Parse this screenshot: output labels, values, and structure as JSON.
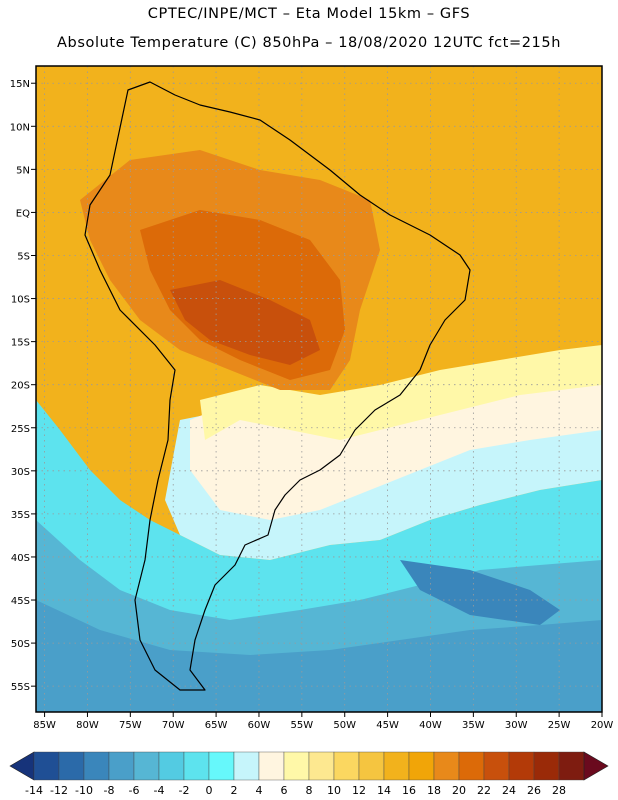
{
  "header": {
    "line1": "CPTEC/INPE/MCT –  Eta Model 15km – GFS",
    "line2": "Absolute Temperature (C) 850hPa – 18/08/2020 12UTC fct=215h"
  },
  "map": {
    "lat_range": [
      -58,
      17
    ],
    "lon_range": [
      -86,
      -20
    ],
    "lat_labels": [
      "15N",
      "10N",
      "5N",
      "EQ",
      "5S",
      "10S",
      "15S",
      "20S",
      "25S",
      "30S",
      "35S",
      "40S",
      "45S",
      "50S",
      "55S"
    ],
    "lat_values": [
      15,
      10,
      5,
      0,
      -5,
      -10,
      -15,
      -20,
      -25,
      -30,
      -35,
      -40,
      -45,
      -50,
      -55
    ],
    "lon_labels": [
      "85W",
      "80W",
      "75W",
      "70W",
      "65W",
      "60W",
      "55W",
      "50W",
      "45W",
      "40W",
      "35W",
      "30W",
      "25W",
      "20W"
    ],
    "lon_values": [
      -85,
      -80,
      -75,
      -70,
      -65,
      -60,
      -55,
      -50,
      -45,
      -40,
      -35,
      -30,
      -25,
      -20
    ],
    "grid": "dotted"
  },
  "colorbar": {
    "units": "C",
    "labels": [
      "-14",
      "-12",
      "-10",
      "-8",
      "-6",
      "-4",
      "-2",
      "0",
      "2",
      "4",
      "6",
      "8",
      "10",
      "12",
      "14",
      "16",
      "18",
      "20",
      "22",
      "24",
      "26",
      "28"
    ],
    "colors": [
      "#16337a",
      "#1f4f95",
      "#2b6aa9",
      "#3a86bb",
      "#4a9fc9",
      "#56b6d4",
      "#53cbe2",
      "#5de3ee",
      "#66f8fb",
      "#c6f5fb",
      "#fff5e0",
      "#fff8a8",
      "#fde890",
      "#fbd760",
      "#f5c540",
      "#f2b21c",
      "#f1a508",
      "#e8891a",
      "#dc6a08",
      "#c8500c",
      "#b33a08",
      "#9a2a08",
      "#7e1c10",
      "#6a0a1e"
    ]
  }
}
